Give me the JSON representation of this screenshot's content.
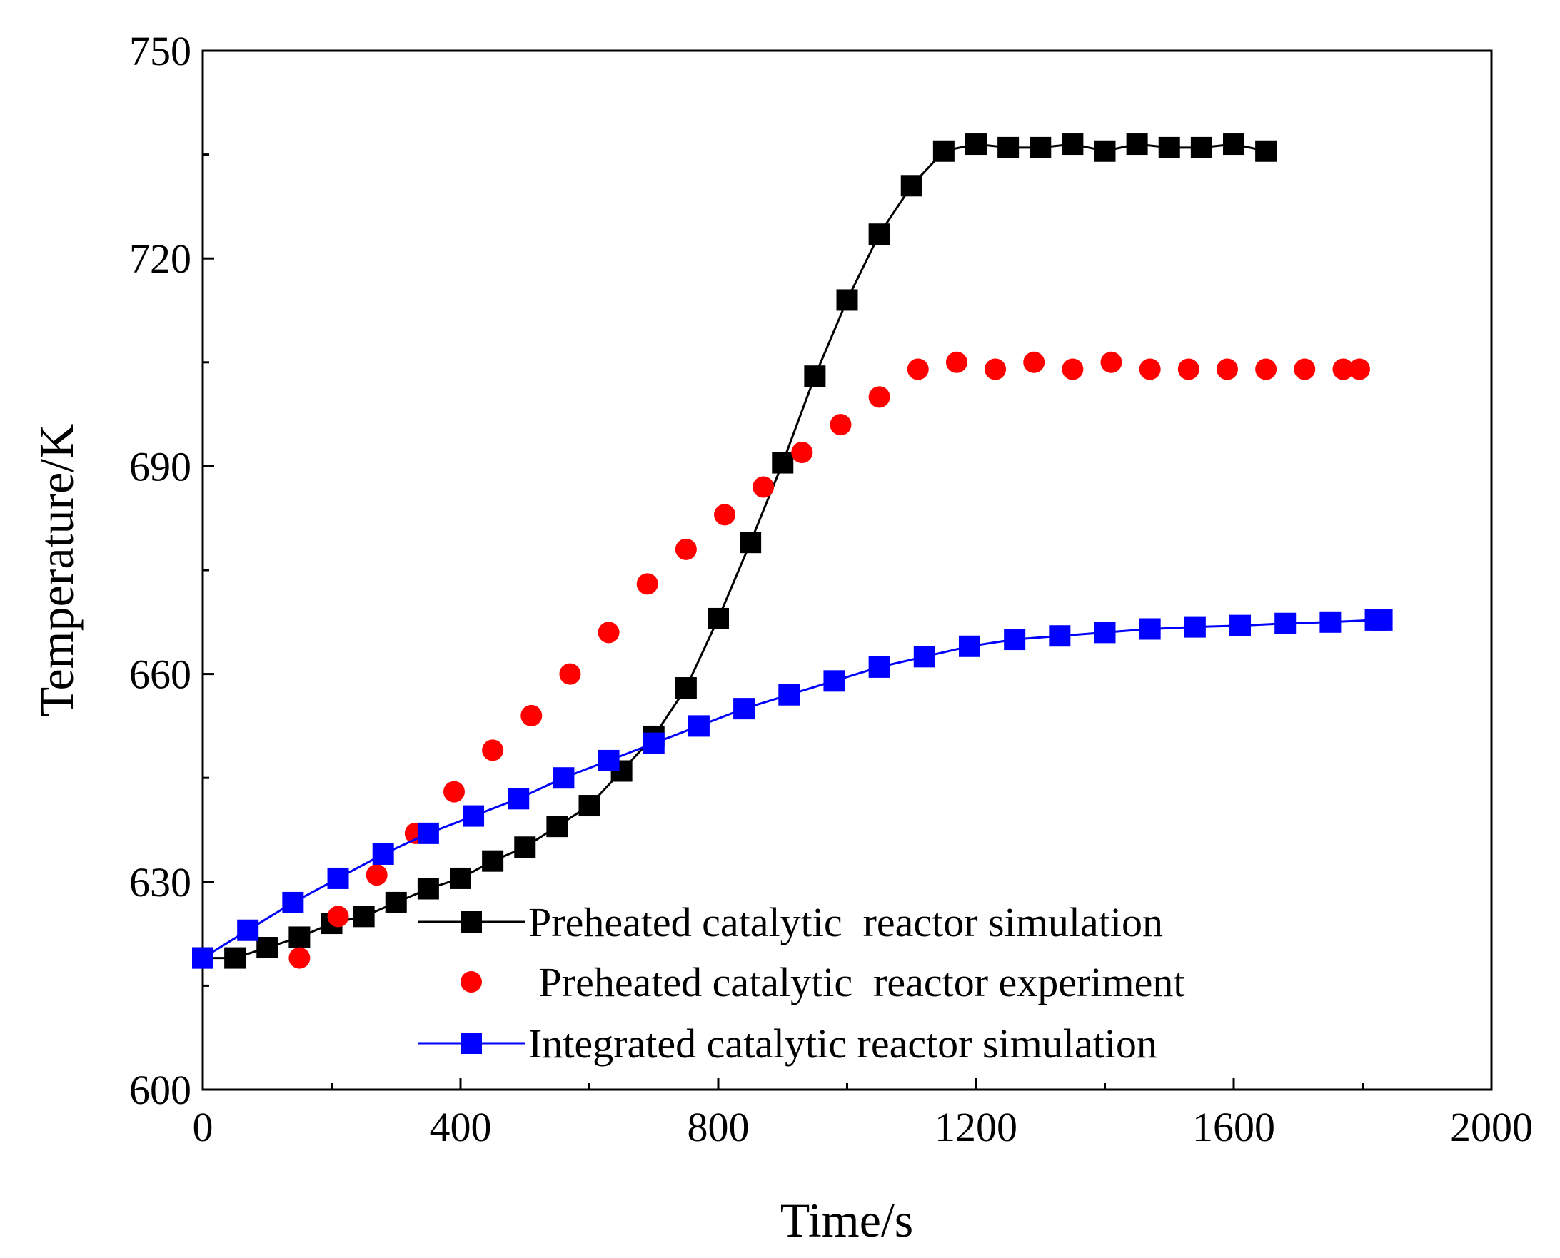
{
  "chart_data": {
    "type": "line",
    "title": "",
    "xlabel": "Time/s",
    "ylabel": "Temperature/K",
    "xlim": [
      0,
      2000
    ],
    "ylim": [
      600,
      750
    ],
    "xticks": [
      0,
      400,
      800,
      1200,
      1600,
      2000
    ],
    "yticks": [
      600,
      630,
      660,
      690,
      720,
      750
    ],
    "xtick_labels": [
      "0",
      "400",
      "800",
      "1200",
      "1600",
      "2000"
    ],
    "ytick_labels": [
      "600",
      "630",
      "660",
      "690",
      "720",
      "750"
    ],
    "grid": false,
    "legend_position": "bottom-right",
    "series": [
      {
        "name": "Preheated catalytic  reactor simulation",
        "color": "#000000",
        "marker": "square",
        "line": true,
        "x": [
          0,
          50,
          100,
          150,
          200,
          250,
          300,
          350,
          400,
          450,
          500,
          550,
          600,
          650,
          700,
          750,
          800,
          850,
          900,
          950,
          1000,
          1050,
          1100,
          1150,
          1200,
          1250,
          1300,
          1350,
          1400,
          1450,
          1500,
          1550,
          1600,
          1650
        ],
        "y": [
          619,
          619,
          620.5,
          622,
          624,
          625,
          627,
          629,
          630.5,
          633,
          635,
          638,
          641,
          646,
          651,
          658,
          668,
          679,
          690.5,
          703,
          714,
          723.5,
          730.5,
          735.5,
          736.5,
          736,
          736,
          736.5,
          735.5,
          736.5,
          736,
          736,
          736.5,
          735.5
        ]
      },
      {
        "name": " Preheated catalytic  reactor experiment",
        "color": "#ff0000",
        "marker": "circle",
        "line": false,
        "x": [
          150,
          210,
          270,
          330,
          390,
          450,
          510,
          570,
          630,
          690,
          750,
          810,
          870,
          930,
          990,
          1050,
          1110,
          1170,
          1230,
          1290,
          1350,
          1410,
          1470,
          1530,
          1590,
          1650,
          1710,
          1770,
          1795
        ],
        "y": [
          619,
          625,
          631,
          637,
          643,
          649,
          654,
          660,
          666,
          673,
          678,
          683,
          687,
          692,
          696,
          700,
          704,
          705,
          704,
          705,
          704,
          705,
          704,
          704,
          704,
          704,
          704,
          704,
          704
        ]
      },
      {
        "name": "Integrated catalytic reactor simulation",
        "color": "#0000ff",
        "marker": "square",
        "line": true,
        "x": [
          0,
          70,
          140,
          210,
          280,
          350,
          420,
          490,
          560,
          630,
          700,
          770,
          840,
          910,
          980,
          1050,
          1120,
          1190,
          1260,
          1330,
          1400,
          1470,
          1540,
          1610,
          1680,
          1750,
          1820,
          1830
        ],
        "y": [
          619,
          623,
          627,
          630.5,
          634,
          637,
          639.5,
          642,
          645,
          647.5,
          650,
          652.5,
          655,
          657,
          659,
          661,
          662.5,
          664,
          665,
          665.5,
          666,
          666.5,
          666.8,
          667,
          667.3,
          667.5,
          667.8,
          667.8
        ]
      }
    ]
  }
}
